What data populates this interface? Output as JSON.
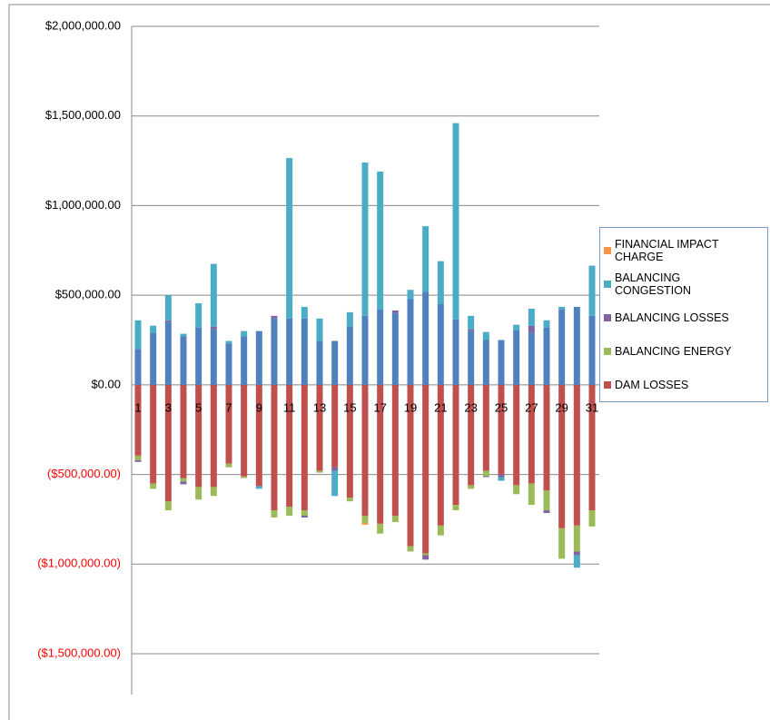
{
  "chart_data": {
    "type": "stacked_bar",
    "categories": [
      "1",
      null,
      "3",
      null,
      "5",
      null,
      "7",
      null,
      "9",
      null,
      "11",
      null,
      "13",
      null,
      "15",
      null,
      "17",
      null,
      "19",
      null,
      "21",
      null,
      "23",
      null,
      "25",
      null,
      "27",
      null,
      "29",
      null,
      "31"
    ],
    "series": [
      {
        "name": "DAM LOSSES",
        "color": "#c0504d",
        "values": [
          -395000,
          -550000,
          -650000,
          -520000,
          -570000,
          -570000,
          -440000,
          -510000,
          -565000,
          -700000,
          -680000,
          -700000,
          -480000,
          -460000,
          -630000,
          -730000,
          -775000,
          -730000,
          -900000,
          -940000,
          -785000,
          -670000,
          -560000,
          -480000,
          -500000,
          -560000,
          -550000,
          -590000,
          -800000,
          -785000,
          -700000
        ]
      },
      {
        "color": "#4f81bd",
        "values": [
          200000,
          290000,
          350000,
          270000,
          320000,
          310000,
          230000,
          270000,
          300000,
          370000,
          370000,
          370000,
          245000,
          245000,
          325000,
          385000,
          420000,
          400000,
          480000,
          520000,
          450000,
          365000,
          300000,
          250000,
          250000,
          305000,
          290000,
          320000,
          420000,
          435000,
          385000
        ]
      },
      {
        "name": "BALANCING ENERGY",
        "color": "#9bbb59",
        "values": [
          -25000,
          -30000,
          -50000,
          -20000,
          -70000,
          -50000,
          -20000,
          -10000,
          0,
          -40000,
          -50000,
          -30000,
          -10000,
          0,
          -20000,
          -40000,
          -55000,
          -35000,
          -30000,
          -10000,
          -55000,
          -30000,
          -20000,
          -30000,
          0,
          -50000,
          -120000,
          -110000,
          -170000,
          -145000,
          -90000
        ]
      },
      {
        "name": "BALANCING LOSSES",
        "color": "#8064a2",
        "values": [
          -10000,
          0,
          10000,
          -15000,
          0,
          15000,
          0,
          0,
          0,
          15000,
          0,
          -10000,
          0,
          -20000,
          0,
          0,
          0,
          15000,
          0,
          -25000,
          0,
          0,
          10000,
          -5000,
          -15000,
          0,
          40000,
          -15000,
          0,
          -20000,
          0
        ]
      },
      {
        "name": "BALANCING CONGESTION",
        "color": "#4bacc6",
        "values": [
          160000,
          40000,
          140000,
          15000,
          135000,
          350000,
          15000,
          30000,
          -15000,
          0,
          895000,
          65000,
          125000,
          -140000,
          80000,
          855000,
          770000,
          0,
          50000,
          365000,
          240000,
          1095000,
          75000,
          45000,
          -20000,
          30000,
          95000,
          40000,
          15000,
          -70000,
          280000
        ]
      },
      {
        "name": "FINANCIAL IMPACT CHARGE",
        "color": "#f79646",
        "values": [
          0,
          0,
          0,
          0,
          0,
          0,
          0,
          0,
          0,
          0,
          0,
          0,
          0,
          0,
          0,
          -10000,
          0,
          0,
          0,
          0,
          0,
          0,
          0,
          0,
          0,
          0,
          0,
          0,
          0,
          0,
          0
        ]
      }
    ],
    "ylim": [
      -1500000,
      2000000
    ],
    "yticks": [
      {
        "value": -1500000,
        "label": "($1,500,000.00)"
      },
      {
        "value": -1000000,
        "label": "($1,000,000.00)"
      },
      {
        "value": -500000,
        "label": "($500,000.00)"
      },
      {
        "value": 0,
        "label": "$0.00"
      },
      {
        "value": 500000,
        "label": "$500,000.00"
      },
      {
        "value": 1000000,
        "label": "$1,000,000.00"
      },
      {
        "value": 1500000,
        "label": "$1,500,000.00"
      },
      {
        "value": 2000000,
        "label": "$2,000,000.00"
      }
    ],
    "negative_tick_color": "#ff0000",
    "grid": true
  }
}
